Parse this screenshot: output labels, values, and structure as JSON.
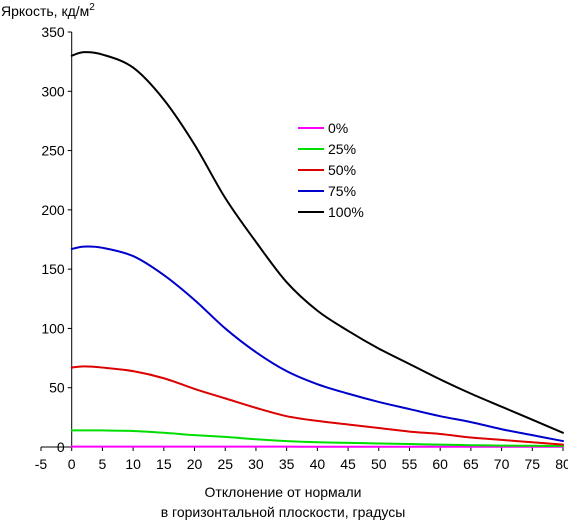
{
  "chart_data": {
    "type": "line",
    "title": "",
    "ylabel": "Яркость, кд/м",
    "ylabel_superscript": "2",
    "xlabel_lines": [
      "Отклонение от нормали",
      "в горизонтальной плоскости, градусы"
    ],
    "xlim": [
      -5,
      80
    ],
    "ylim": [
      0,
      350
    ],
    "x_ticks": [
      -5,
      0,
      5,
      10,
      15,
      20,
      25,
      30,
      35,
      40,
      45,
      50,
      55,
      60,
      65,
      70,
      75,
      80
    ],
    "y_ticks": [
      0,
      50,
      100,
      150,
      200,
      250,
      300,
      350
    ],
    "grid": false,
    "legend_position": "center-right",
    "x": [
      0,
      2,
      5,
      10,
      15,
      20,
      25,
      30,
      35,
      40,
      45,
      50,
      55,
      60,
      65,
      70,
      75,
      80
    ],
    "series": [
      {
        "name": "0%",
        "color": "#ff00ff",
        "values": [
          0.3,
          0.3,
          0.3,
          0.3,
          0.3,
          0.3,
          0.3,
          0.3,
          0.3,
          0.2,
          0.2,
          0.2,
          0.2,
          0.2,
          0.2,
          0.2,
          0.2,
          0.2
        ]
      },
      {
        "name": "25%",
        "color": "#00dd00",
        "values": [
          14,
          14,
          14,
          13.5,
          12,
          10,
          8.5,
          6.5,
          5,
          4,
          3.5,
          3,
          2.5,
          2,
          1.5,
          1.2,
          1,
          0.8
        ]
      },
      {
        "name": "50%",
        "color": "#dd0000",
        "values": [
          67,
          68,
          67,
          64,
          58,
          49,
          41,
          33,
          26,
          22,
          19,
          16,
          13,
          11,
          8,
          6,
          4,
          2
        ]
      },
      {
        "name": "75%",
        "color": "#0000cc",
        "values": [
          167,
          169,
          168,
          161,
          145,
          124,
          100,
          80,
          64,
          53,
          45,
          38,
          32,
          26,
          21,
          15,
          10,
          5
        ]
      },
      {
        "name": "100%",
        "color": "#000000",
        "values": [
          330,
          333,
          331,
          320,
          293,
          255,
          210,
          173,
          139,
          115,
          98,
          83,
          70,
          57,
          45,
          34,
          23,
          12
        ]
      }
    ]
  }
}
